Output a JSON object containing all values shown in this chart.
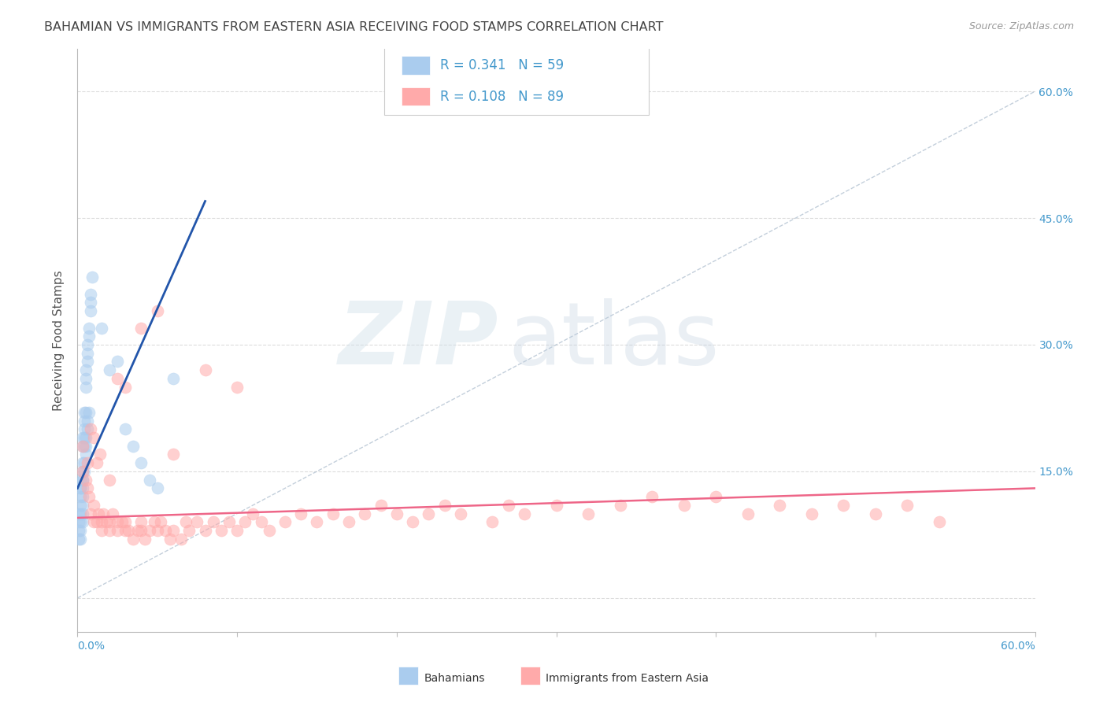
{
  "title": "BAHAMIAN VS IMMIGRANTS FROM EASTERN ASIA RECEIVING FOOD STAMPS CORRELATION CHART",
  "source": "Source: ZipAtlas.com",
  "ylabel": "Receiving Food Stamps",
  "xmin": 0.0,
  "xmax": 0.6,
  "ymin": -0.04,
  "ymax": 0.65,
  "blue_color": "#AACCEE",
  "pink_color": "#FFAAAA",
  "blue_line_color": "#2255AA",
  "pink_line_color": "#EE6688",
  "diag_color": "#AABBCC",
  "grid_color": "#DDDDDD",
  "right_tick_color": "#4499CC",
  "title_color": "#444444",
  "source_color": "#999999",
  "legend_text_color": "#333333",
  "legend_R_color": "#4499CC",
  "legend_N_color": "#4499CC",
  "bottom_label_color": "#4499CC",
  "scatter_size": 120,
  "scatter_alpha": 0.55,
  "blue_line_start_x": 0.0,
  "blue_line_start_y": 0.13,
  "blue_line_end_x": 0.08,
  "blue_line_end_y": 0.47,
  "pink_line_start_x": 0.0,
  "pink_line_start_y": 0.095,
  "pink_line_end_x": 0.6,
  "pink_line_end_y": 0.13,
  "blue_x": [
    0.001,
    0.002,
    0.002,
    0.002,
    0.002,
    0.003,
    0.003,
    0.003,
    0.003,
    0.003,
    0.003,
    0.003,
    0.004,
    0.004,
    0.004,
    0.004,
    0.004,
    0.005,
    0.005,
    0.005,
    0.005,
    0.006,
    0.006,
    0.006,
    0.007,
    0.007,
    0.008,
    0.008,
    0.008,
    0.009,
    0.001,
    0.001,
    0.001,
    0.002,
    0.002,
    0.002,
    0.002,
    0.002,
    0.003,
    0.003,
    0.003,
    0.003,
    0.004,
    0.004,
    0.005,
    0.005,
    0.005,
    0.006,
    0.006,
    0.007,
    0.025,
    0.015,
    0.02,
    0.03,
    0.035,
    0.04,
    0.045,
    0.05,
    0.06
  ],
  "blue_y": [
    0.1,
    0.12,
    0.13,
    0.14,
    0.13,
    0.15,
    0.16,
    0.14,
    0.13,
    0.14,
    0.18,
    0.19,
    0.2,
    0.22,
    0.21,
    0.19,
    0.18,
    0.22,
    0.25,
    0.26,
    0.27,
    0.28,
    0.3,
    0.29,
    0.32,
    0.31,
    0.35,
    0.34,
    0.36,
    0.38,
    0.07,
    0.08,
    0.09,
    0.1,
    0.11,
    0.09,
    0.08,
    0.07,
    0.12,
    0.11,
    0.1,
    0.09,
    0.15,
    0.16,
    0.17,
    0.18,
    0.19,
    0.2,
    0.21,
    0.22,
    0.28,
    0.32,
    0.27,
    0.2,
    0.18,
    0.16,
    0.14,
    0.13,
    0.26
  ],
  "pink_x": [
    0.003,
    0.005,
    0.006,
    0.007,
    0.008,
    0.01,
    0.01,
    0.012,
    0.013,
    0.015,
    0.015,
    0.016,
    0.018,
    0.02,
    0.02,
    0.022,
    0.025,
    0.025,
    0.028,
    0.03,
    0.03,
    0.032,
    0.035,
    0.038,
    0.04,
    0.04,
    0.042,
    0.045,
    0.048,
    0.05,
    0.052,
    0.055,
    0.058,
    0.06,
    0.065,
    0.068,
    0.07,
    0.075,
    0.08,
    0.085,
    0.09,
    0.095,
    0.1,
    0.105,
    0.11,
    0.115,
    0.12,
    0.13,
    0.14,
    0.15,
    0.16,
    0.17,
    0.18,
    0.19,
    0.2,
    0.21,
    0.22,
    0.23,
    0.24,
    0.26,
    0.27,
    0.28,
    0.3,
    0.32,
    0.34,
    0.36,
    0.38,
    0.4,
    0.42,
    0.44,
    0.46,
    0.48,
    0.5,
    0.52,
    0.54,
    0.003,
    0.006,
    0.008,
    0.01,
    0.012,
    0.014,
    0.02,
    0.025,
    0.03,
    0.04,
    0.05,
    0.06,
    0.08,
    0.1
  ],
  "pink_y": [
    0.15,
    0.14,
    0.13,
    0.12,
    0.1,
    0.09,
    0.11,
    0.09,
    0.1,
    0.09,
    0.08,
    0.1,
    0.09,
    0.08,
    0.09,
    0.1,
    0.09,
    0.08,
    0.09,
    0.08,
    0.09,
    0.08,
    0.07,
    0.08,
    0.08,
    0.09,
    0.07,
    0.08,
    0.09,
    0.08,
    0.09,
    0.08,
    0.07,
    0.08,
    0.07,
    0.09,
    0.08,
    0.09,
    0.08,
    0.09,
    0.08,
    0.09,
    0.08,
    0.09,
    0.1,
    0.09,
    0.08,
    0.09,
    0.1,
    0.09,
    0.1,
    0.09,
    0.1,
    0.11,
    0.1,
    0.09,
    0.1,
    0.11,
    0.1,
    0.09,
    0.11,
    0.1,
    0.11,
    0.1,
    0.11,
    0.12,
    0.11,
    0.12,
    0.1,
    0.11,
    0.1,
    0.11,
    0.1,
    0.11,
    0.09,
    0.18,
    0.16,
    0.2,
    0.19,
    0.16,
    0.17,
    0.14,
    0.26,
    0.25,
    0.32,
    0.34,
    0.17,
    0.27,
    0.25
  ]
}
